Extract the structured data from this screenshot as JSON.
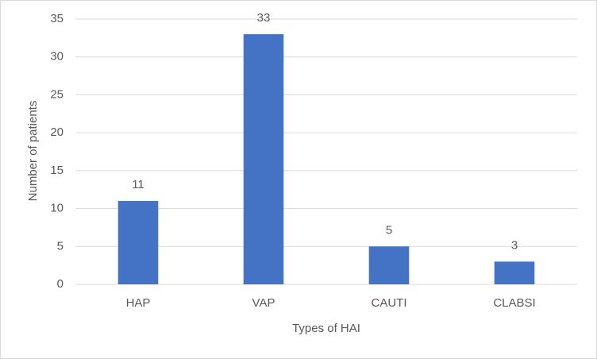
{
  "chart_data": {
    "type": "bar",
    "x_label": "Types of HAI",
    "y_label": "Number of patients",
    "categories": [
      "HAP",
      "VAP",
      "CAUTI",
      "CLABSI"
    ],
    "values": [
      11,
      33,
      5,
      3
    ],
    "color": "#4472c4",
    "ylim": [
      0,
      35
    ],
    "yticks": [
      0,
      5,
      10,
      15,
      20,
      25,
      30,
      35
    ],
    "grid": true,
    "data_labels": true
  }
}
